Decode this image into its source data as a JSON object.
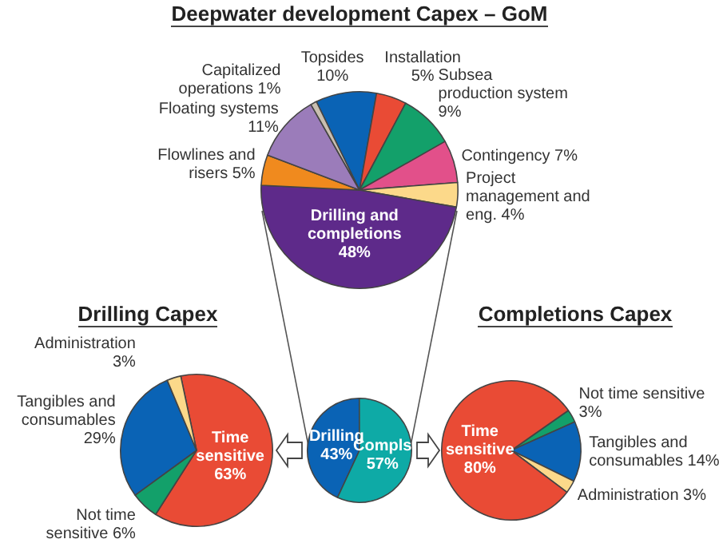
{
  "chart_data": [
    {
      "type": "pie",
      "title": "Deepwater development Capex – GoM",
      "categories": [
        "Topsides",
        "Installation",
        "Subsea production system",
        "Contingency",
        "Project management and eng.",
        "Drilling and completions",
        "Flowlines and risers",
        "Floating systems",
        "Capitalized operations"
      ],
      "values": [
        10,
        5,
        9,
        7,
        4,
        48,
        5,
        11,
        1
      ],
      "value_labels": [
        "10%",
        "5%",
        "9%",
        "7%",
        "4%",
        "48%",
        "5%",
        "11%",
        "1%"
      ],
      "colors": [
        "#0a63b5",
        "#e94b35",
        "#13a06a",
        "#e2508a",
        "#fcd98a",
        "#5e2a8a",
        "#f08a1e",
        "#9b7cba",
        "#c9bfb0"
      ]
    },
    {
      "type": "pie",
      "title": "Drilling Capex",
      "categories": [
        "Time sensitive",
        "Not time sensitive",
        "Tangibles and consumables",
        "Administration"
      ],
      "values": [
        63,
        6,
        29,
        3
      ],
      "value_labels": [
        "63%",
        "6%",
        "29%",
        "3%"
      ],
      "colors": [
        "#e94b35",
        "#13a06a",
        "#0a63b5",
        "#fcd98a"
      ]
    },
    {
      "type": "pie",
      "categories": [
        "Drilling",
        "Compls"
      ],
      "values": [
        43,
        57
      ],
      "value_labels": [
        "43%",
        "57%"
      ],
      "colors": [
        "#0a63b5",
        "#0eaaa6"
      ]
    },
    {
      "type": "pie",
      "title": "Completions Capex",
      "categories": [
        "Not time sensitive",
        "Tangibles and consumables",
        "Administration",
        "Time sensitive"
      ],
      "values": [
        3,
        14,
        3,
        80
      ],
      "value_labels": [
        "3%",
        "14%",
        "3%",
        "80%"
      ],
      "colors": [
        "#13a06a",
        "#0a63b5",
        "#fcd98a",
        "#e94b35"
      ]
    }
  ]
}
